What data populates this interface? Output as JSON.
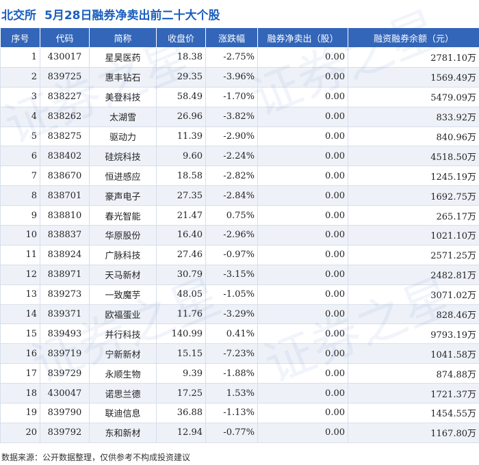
{
  "header": {
    "exchange": "北交所",
    "title": "5月28日融券净卖出前二十大个股"
  },
  "columns": [
    "序号",
    "代码",
    "简称",
    "收盘价",
    "涨跌幅",
    "融券净卖出（股）",
    "融资融券余额（元）"
  ],
  "rows": [
    {
      "idx": "1",
      "code": "430017",
      "name": "星昊医药",
      "close": "18.38",
      "chg": "-2.75%",
      "dir": "down",
      "net": "0.00",
      "bal": "2781.10万"
    },
    {
      "idx": "2",
      "code": "839725",
      "name": "惠丰钻石",
      "close": "29.35",
      "chg": "-3.96%",
      "dir": "down",
      "net": "0.00",
      "bal": "1569.49万"
    },
    {
      "idx": "3",
      "code": "838227",
      "name": "美登科技",
      "close": "58.49",
      "chg": "-1.70%",
      "dir": "down",
      "net": "0.00",
      "bal": "5479.09万"
    },
    {
      "idx": "4",
      "code": "838262",
      "name": "太湖雪",
      "close": "26.96",
      "chg": "-3.82%",
      "dir": "down",
      "net": "0.00",
      "bal": "833.92万"
    },
    {
      "idx": "5",
      "code": "838275",
      "name": "驱动力",
      "close": "11.39",
      "chg": "-2.90%",
      "dir": "down",
      "net": "0.00",
      "bal": "840.96万"
    },
    {
      "idx": "6",
      "code": "838402",
      "name": "硅烷科技",
      "close": "9.60",
      "chg": "-2.24%",
      "dir": "down",
      "net": "0.00",
      "bal": "4518.50万"
    },
    {
      "idx": "7",
      "code": "838670",
      "name": "恒进感应",
      "close": "18.58",
      "chg": "-2.82%",
      "dir": "down",
      "net": "0.00",
      "bal": "1245.19万"
    },
    {
      "idx": "8",
      "code": "838701",
      "name": "豪声电子",
      "close": "27.35",
      "chg": "-2.84%",
      "dir": "down",
      "net": "0.00",
      "bal": "1692.75万"
    },
    {
      "idx": "9",
      "code": "838810",
      "name": "春光智能",
      "close": "21.47",
      "chg": "0.75%",
      "dir": "up",
      "net": "0.00",
      "bal": "265.17万"
    },
    {
      "idx": "10",
      "code": "838837",
      "name": "华原股份",
      "close": "16.40",
      "chg": "-2.96%",
      "dir": "down",
      "net": "0.00",
      "bal": "1021.10万"
    },
    {
      "idx": "11",
      "code": "838924",
      "name": "广脉科技",
      "close": "27.46",
      "chg": "-0.97%",
      "dir": "down",
      "net": "0.00",
      "bal": "2571.25万"
    },
    {
      "idx": "12",
      "code": "838971",
      "name": "天马新材",
      "close": "30.79",
      "chg": "-3.15%",
      "dir": "down",
      "net": "0.00",
      "bal": "2482.81万"
    },
    {
      "idx": "13",
      "code": "839273",
      "name": "一致魔芋",
      "close": "48.05",
      "chg": "-1.05%",
      "dir": "down",
      "net": "0.00",
      "bal": "3071.02万"
    },
    {
      "idx": "14",
      "code": "839371",
      "name": "欧福蛋业",
      "close": "11.76",
      "chg": "-3.29%",
      "dir": "down",
      "net": "0.00",
      "bal": "828.46万"
    },
    {
      "idx": "15",
      "code": "839493",
      "name": "并行科技",
      "close": "140.99",
      "chg": "0.41%",
      "dir": "up",
      "net": "0.00",
      "bal": "9793.19万"
    },
    {
      "idx": "16",
      "code": "839719",
      "name": "宁新新材",
      "close": "15.15",
      "chg": "-7.23%",
      "dir": "down",
      "net": "0.00",
      "bal": "1041.58万"
    },
    {
      "idx": "17",
      "code": "839729",
      "name": "永顺生物",
      "close": "9.39",
      "chg": "-1.88%",
      "dir": "down",
      "net": "0.00",
      "bal": "874.88万"
    },
    {
      "idx": "18",
      "code": "430047",
      "name": "诺思兰德",
      "close": "17.25",
      "chg": "1.53%",
      "dir": "up",
      "net": "0.00",
      "bal": "1721.37万"
    },
    {
      "idx": "19",
      "code": "839790",
      "name": "联迪信息",
      "close": "36.88",
      "chg": "-1.13%",
      "dir": "down",
      "net": "0.00",
      "bal": "1454.55万"
    },
    {
      "idx": "20",
      "code": "839792",
      "name": "东和新材",
      "close": "12.94",
      "chg": "-0.77%",
      "dir": "down",
      "net": "0.00",
      "bal": "1167.80万"
    }
  ],
  "footer": {
    "source": "数据来源：公开数据整理，仅供参考不构成投资建议"
  },
  "watermark": {
    "text": "证券之星"
  },
  "colors": {
    "title": "#1a5fbf",
    "header_bg": "#3366b8",
    "up": "#e02020",
    "down": "#1a9a3a",
    "stripe": "#eef2f8"
  }
}
